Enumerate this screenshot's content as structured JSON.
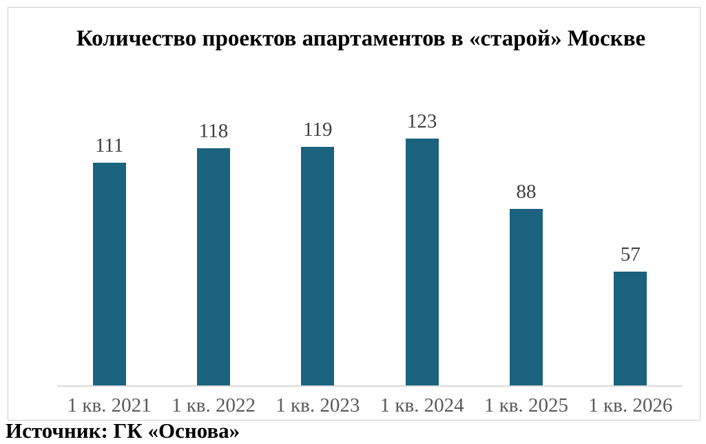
{
  "colors": {
    "bar": "#1b627f",
    "title": "#000000",
    "data_label": "#404040",
    "axis_label": "#595959",
    "axis_line": "#d9d9d9",
    "frame_border": "#cfcfcf",
    "background": "#ffffff"
  },
  "chart_data": {
    "type": "bar",
    "title": "Количество проектов апартаментов в «старой» Москве",
    "categories": [
      "1 кв. 2021",
      "1 кв. 2022",
      "1 кв. 2023",
      "1 кв. 2024",
      "1 кв. 2025",
      "1 кв. 2026"
    ],
    "values": [
      111,
      118,
      119,
      123,
      88,
      57
    ],
    "data_labels": [
      "111",
      "118",
      "119",
      "123",
      "88",
      "57"
    ],
    "xlabel": "",
    "ylabel": "",
    "ylim": [
      0,
      130
    ],
    "grid": false,
    "legend": false,
    "y_axis_visible": false,
    "source_note": "Источник: ГК «Основа»"
  }
}
